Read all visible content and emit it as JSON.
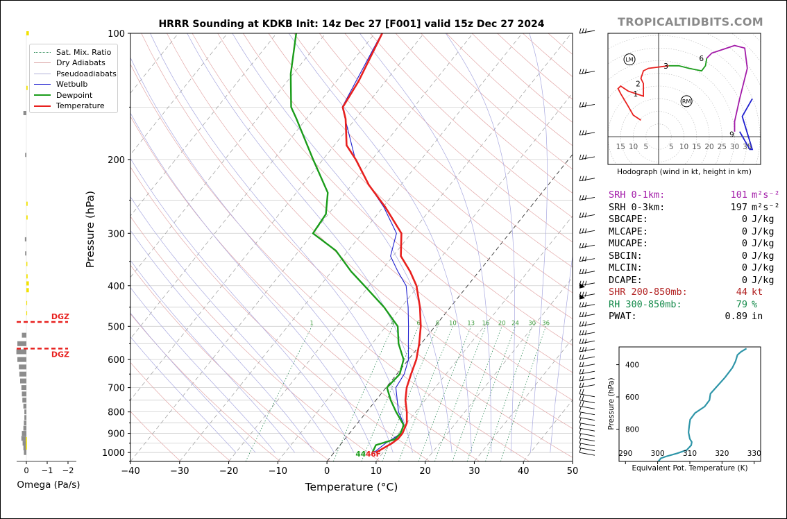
{
  "title": "HRRR Sounding at KDKB Init: 14z Dec 27 [F001] valid 15z Dec 27 2024",
  "brand": "TROPICALTIDBITS.COM",
  "legend": [
    {
      "label": "Sat. Mix. Ratio",
      "color": "#2e8b57",
      "style": "dotted"
    },
    {
      "label": "Dry Adiabats",
      "color": "#d9a0a0",
      "style": "solid"
    },
    {
      "label": "Pseudoadiabats",
      "color": "#b0b0d8",
      "style": "solid"
    },
    {
      "label": "Wetbulb",
      "color": "#1f1fcf",
      "style": "solid"
    },
    {
      "label": "Dewpoint",
      "color": "#1a9c1a",
      "style": "solid-thick"
    },
    {
      "label": "Temperature",
      "color": "#e8201e",
      "style": "solid-thick"
    }
  ],
  "chart_data": [
    {
      "type": "line",
      "name": "skew-t",
      "xlabel": "Temperature (°C)",
      "ylabel": "Pressure (hPa)",
      "xlim": [
        -40,
        50
      ],
      "ylim": [
        1050,
        100
      ],
      "yscale": "log",
      "xticks": [
        -40,
        -30,
        -20,
        -10,
        0,
        10,
        20,
        30,
        40,
        50
      ],
      "yticks": [
        100,
        200,
        300,
        400,
        500,
        600,
        700,
        800,
        900,
        1000
      ],
      "mixing_ratio_labels": [
        "1",
        "4",
        "6",
        "8",
        "10",
        "13",
        "16",
        "20",
        "24",
        "30",
        "36"
      ],
      "surface_label_dewpoint": "44",
      "surface_label_temperature": "46F",
      "series": [
        {
          "name": "Temperature",
          "color": "#e8201e",
          "points": [
            [
              1000,
              8.5
            ],
            [
              950,
              10.3
            ],
            [
              925,
              10.8
            ],
            [
              900,
              10.8
            ],
            [
              850,
              10.0
            ],
            [
              800,
              8.2
            ],
            [
              750,
              6.0
            ],
            [
              700,
              4.2
            ],
            [
              650,
              2.9
            ],
            [
              600,
              1.6
            ],
            [
              550,
              -0.4
            ],
            [
              500,
              -2.9
            ],
            [
              450,
              -6.2
            ],
            [
              400,
              -10.4
            ],
            [
              370,
              -14.0
            ],
            [
              340,
              -18.4
            ],
            [
              300,
              -22.0
            ],
            [
              260,
              -29.5
            ],
            [
              230,
              -36.5
            ],
            [
              200,
              -43.3
            ],
            [
              185,
              -47.5
            ],
            [
              160,
              -52.0
            ],
            [
              150,
              -54.5
            ],
            [
              130,
              -55.5
            ],
            [
              100,
              -58.5
            ]
          ]
        },
        {
          "name": "Dewpoint",
          "color": "#1a9c1a",
          "points": [
            [
              1000,
              7.8
            ],
            [
              960,
              7.3
            ],
            [
              930,
              10.2
            ],
            [
              900,
              10.4
            ],
            [
              860,
              9.7
            ],
            [
              800,
              6.0
            ],
            [
              750,
              3.0
            ],
            [
              700,
              0.2
            ],
            [
              650,
              0.6
            ],
            [
              600,
              -1.0
            ],
            [
              550,
              -4.6
            ],
            [
              500,
              -7.6
            ],
            [
              450,
              -13.5
            ],
            [
              400,
              -21.0
            ],
            [
              370,
              -26.0
            ],
            [
              330,
              -32.5
            ],
            [
              300,
              -40.0
            ],
            [
              270,
              -40.5
            ],
            [
              240,
              -43.6
            ],
            [
              200,
              -52.0
            ],
            [
              160,
              -62.0
            ],
            [
              150,
              -65.0
            ],
            [
              125,
              -70.5
            ],
            [
              100,
              -76.0
            ]
          ]
        },
        {
          "name": "Wetbulb",
          "color": "#1f1fcf",
          "points": [
            [
              1000,
              8.1
            ],
            [
              950,
              9.0
            ],
            [
              900,
              10.5
            ],
            [
              850,
              9.3
            ],
            [
              800,
              6.5
            ],
            [
              700,
              2.0
            ],
            [
              650,
              1.5
            ],
            [
              600,
              0.0
            ],
            [
              550,
              -2.6
            ],
            [
              500,
              -5.4
            ],
            [
              450,
              -8.6
            ],
            [
              400,
              -12.5
            ],
            [
              370,
              -16.5
            ],
            [
              340,
              -20.5
            ],
            [
              300,
              -23.0
            ],
            [
              260,
              -29.8
            ],
            [
              230,
              -36.5
            ],
            [
              200,
              -43.4
            ],
            [
              150,
              -54.6
            ],
            [
              100,
              -58.6
            ]
          ]
        }
      ],
      "wind_barbs_present": true
    },
    {
      "type": "line",
      "name": "hodograph",
      "xlabel": "Hodograph (wind in kt, height in km)",
      "ring_labels": [
        "15",
        "10",
        "5",
        "5",
        "10",
        "15",
        "20",
        "25",
        "30",
        "35"
      ],
      "height_labels": [
        "1",
        "2",
        "3",
        "6",
        "9"
      ],
      "markers": [
        "LM",
        "RM"
      ],
      "series": [
        {
          "name": "0-3 km",
          "color": "#e8201e"
        },
        {
          "name": "3-6 km",
          "color": "#1a9c1a"
        },
        {
          "name": "6-9 km",
          "color": "#a21aa8"
        },
        {
          "name": "9+ km",
          "color": "#1f1fcf"
        }
      ]
    },
    {
      "type": "line",
      "name": "theta-e",
      "xlabel": "Equivalent Pot. Temperature (K)",
      "ylabel": "Pressure (hPa)",
      "xlim": [
        288,
        332
      ],
      "xticks": [
        290,
        300,
        310,
        320,
        330
      ],
      "yticks": [
        400,
        600,
        800
      ],
      "ylim": [
        1000,
        290
      ],
      "series": [
        {
          "name": "theta-e",
          "color": "#2e95a8",
          "points": [
            [
              1000,
              300.2
            ],
            [
              980,
              301
            ],
            [
              970,
              302.5
            ],
            [
              950,
              306
            ],
            [
              930,
              309
            ],
            [
              900,
              310.4
            ],
            [
              880,
              310.6
            ],
            [
              860,
              310
            ],
            [
              820,
              309.6
            ],
            [
              780,
              309.8
            ],
            [
              740,
              310.1
            ],
            [
              700,
              311.6
            ],
            [
              660,
              314.6
            ],
            [
              620,
              316.1
            ],
            [
              580,
              316.4
            ],
            [
              540,
              318.2
            ],
            [
              480,
              320.9
            ],
            [
              420,
              323.2
            ],
            [
              380,
              324.2
            ],
            [
              340,
              324.8
            ],
            [
              320,
              325.9
            ],
            [
              300,
              327.6
            ]
          ]
        }
      ]
    },
    {
      "type": "bar",
      "name": "omega",
      "xlabel": "Omega (Pa/s)",
      "xticks": [
        "0",
        "−1",
        "−2"
      ],
      "dgz_label": "DGZ",
      "dgz_bounds": [
        488,
        565
      ]
    }
  ],
  "stats": [
    {
      "label": "SRH 0-1km:",
      "value": "101",
      "unit": "m²s⁻²",
      "color": "#a21aa8"
    },
    {
      "label": "SRH 0-3km:",
      "value": "197",
      "unit": "m²s⁻²",
      "color": "#000000"
    },
    {
      "label": "SBCAPE:",
      "value": "0",
      "unit": "J/kg",
      "color": "#000000"
    },
    {
      "label": "MLCAPE:",
      "value": "0",
      "unit": "J/kg",
      "color": "#000000"
    },
    {
      "label": "MUCAPE:",
      "value": "0",
      "unit": "J/kg",
      "color": "#000000"
    },
    {
      "label": "SBCIN:",
      "value": "0",
      "unit": "J/kg",
      "color": "#000000"
    },
    {
      "label": "MLCIN:",
      "value": "0",
      "unit": "J/kg",
      "color": "#000000"
    },
    {
      "label": "DCAPE:",
      "value": "0",
      "unit": "J/kg",
      "color": "#000000"
    },
    {
      "label": "SHR 200-850mb:",
      "value": "44",
      "unit": "kt",
      "color": "#b22222"
    },
    {
      "label": "RH 300-850mb:",
      "value": "79",
      "unit": "%",
      "color": "#148a4a"
    },
    {
      "label": "PWAT:",
      "value": "0.89",
      "unit": "in",
      "color": "#000000"
    }
  ]
}
